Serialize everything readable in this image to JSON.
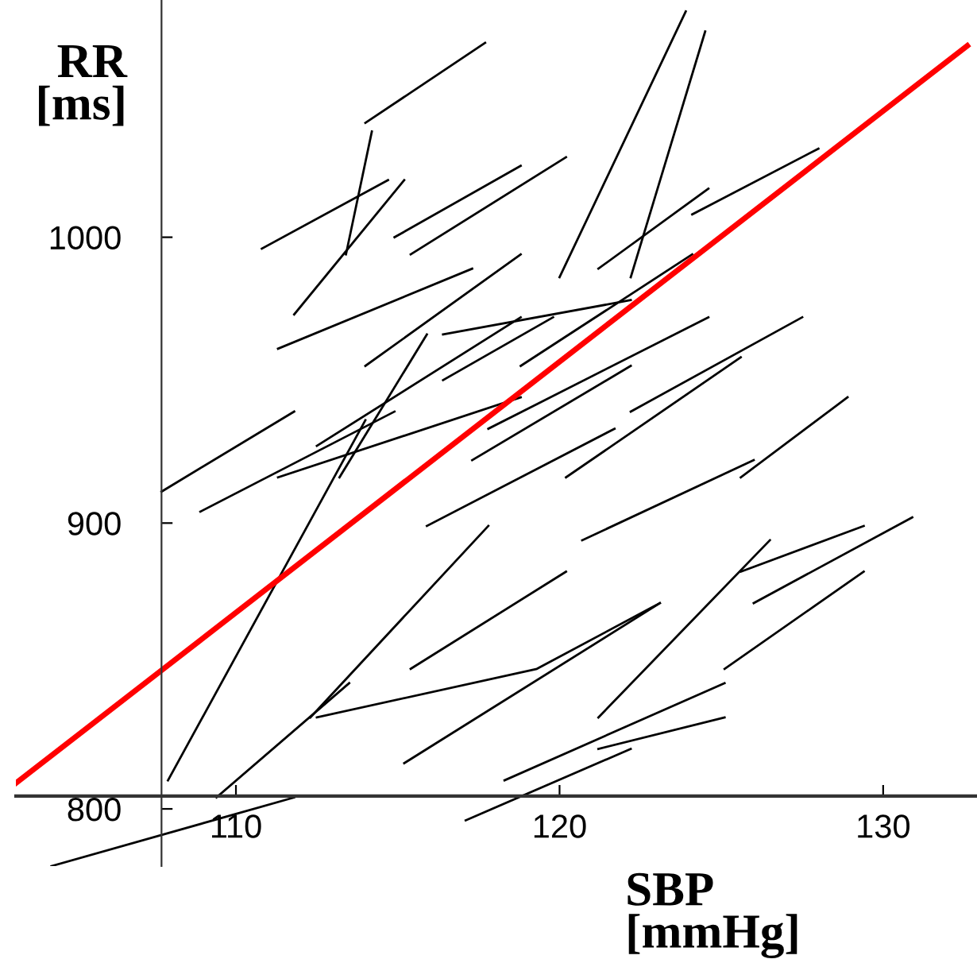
{
  "chart_data": {
    "type": "line",
    "xlabel": "SBP\n[mmHg]",
    "ylabel": "RR\n[ms]",
    "xlim": [
      103.2,
      132.9
    ],
    "ylim": [
      780,
      1083
    ],
    "xticks": [
      110,
      120,
      130
    ],
    "yticks": [
      800,
      900,
      1000
    ],
    "series": [
      {
        "color": "#000000",
        "x": [
          114.0,
          117.7
        ],
        "values": [
          1040,
          1068
        ]
      },
      {
        "color": "#000000",
        "x": [
          113.4,
          114.2
        ],
        "values": [
          994,
          1037
        ]
      },
      {
        "color": "#000000",
        "x": [
          110.8,
          114.7
        ],
        "values": [
          996,
          1020
        ]
      },
      {
        "color": "#000000",
        "x": [
          111.8,
          115.2
        ],
        "values": [
          973,
          1020
        ]
      },
      {
        "color": "#000000",
        "x": [
          120.0,
          123.9
        ],
        "values": [
          986,
          1079
        ]
      },
      {
        "color": "#000000",
        "x": [
          122.2,
          124.5
        ],
        "values": [
          986,
          1072
        ]
      },
      {
        "color": "#000000",
        "x": [
          124.1,
          128.0
        ],
        "values": [
          1008,
          1031
        ]
      },
      {
        "color": "#000000",
        "x": [
          111.3,
          117.3
        ],
        "values": [
          961,
          989
        ]
      },
      {
        "color": "#000000",
        "x": [
          112.5,
          118.8
        ],
        "values": [
          927,
          972
        ]
      },
      {
        "color": "#000000",
        "x": [
          111.3,
          118.8
        ],
        "values": [
          916,
          944
        ]
      },
      {
        "color": "#000000",
        "x": [
          107.7,
          111.8
        ],
        "values": [
          911,
          939
        ]
      },
      {
        "color": "#000000",
        "x": [
          108.9,
          114.9
        ],
        "values": [
          904,
          939
        ]
      },
      {
        "color": "#000000",
        "x": [
          113.2,
          115.9
        ],
        "values": [
          916,
          966
        ]
      },
      {
        "color": "#000000",
        "x": [
          107.9,
          114.0
        ],
        "values": [
          810,
          936
        ]
      },
      {
        "color": "#000000",
        "x": [
          109.4,
          113.5
        ],
        "values": [
          804,
          844
        ]
      },
      {
        "color": "#000000",
        "x": [
          112.3,
          117.8
        ],
        "values": [
          832,
          899
        ]
      },
      {
        "color": "#000000",
        "x": [
          115.4,
          120.2
        ],
        "values": [
          849,
          883
        ]
      },
      {
        "color": "#000000",
        "x": [
          112.5,
          119.3,
          123.1
        ],
        "values": [
          832,
          849,
          872
        ]
      },
      {
        "color": "#000000",
        "x": [
          115.2,
          123.1
        ],
        "values": [
          816,
          872
        ]
      },
      {
        "color": "#000000",
        "x": [
          118.3,
          125.1
        ],
        "values": [
          810,
          844
        ]
      },
      {
        "color": "#000000",
        "x": [
          121.2,
          125.1
        ],
        "values": [
          821,
          832
        ]
      },
      {
        "color": "#000000",
        "x": [
          125.1,
          129.4
        ],
        "values": [
          849,
          883
        ]
      },
      {
        "color": "#000000",
        "x": [
          121.2,
          126.5
        ],
        "values": [
          832,
          894
        ]
      },
      {
        "color": "#000000",
        "x": [
          125.6,
          129.4
        ],
        "values": [
          883,
          899
        ]
      },
      {
        "color": "#000000",
        "x": [
          126.0,
          130.9
        ],
        "values": [
          872,
          902
        ]
      },
      {
        "color": "#000000",
        "x": [
          125.6,
          128.9
        ],
        "values": [
          916,
          944
        ]
      },
      {
        "color": "#000000",
        "x": [
          122.2,
          127.5
        ],
        "values": [
          939,
          972
        ]
      },
      {
        "color": "#000000",
        "x": [
          120.7,
          126.0
        ],
        "values": [
          894,
          922
        ]
      },
      {
        "color": "#000000",
        "x": [
          120.2,
          125.6
        ],
        "values": [
          916,
          958
        ]
      },
      {
        "color": "#000000",
        "x": [
          115.9,
          121.7
        ],
        "values": [
          899,
          933
        ]
      },
      {
        "color": "#000000",
        "x": [
          117.8,
          124.6
        ],
        "values": [
          933,
          972
        ]
      },
      {
        "color": "#000000",
        "x": [
          118.8,
          124.1
        ],
        "values": [
          955,
          994
        ]
      },
      {
        "color": "#000000",
        "x": [
          121.2,
          124.6
        ],
        "values": [
          989,
          1017
        ]
      },
      {
        "color": "#000000",
        "x": [
          115.4,
          120.2
        ],
        "values": [
          994,
          1028
        ]
      },
      {
        "color": "#000000",
        "x": [
          114.9,
          118.8
        ],
        "values": [
          1000,
          1025
        ]
      },
      {
        "color": "#000000",
        "x": [
          114.0,
          118.8
        ],
        "values": [
          955,
          994
        ]
      },
      {
        "color": "#000000",
        "x": [
          116.4,
          119.8
        ],
        "values": [
          950,
          972
        ]
      },
      {
        "color": "#000000",
        "x": [
          117.3,
          122.2
        ],
        "values": [
          922,
          955
        ]
      },
      {
        "color": "#000000",
        "x": [
          116.4,
          122.2
        ],
        "values": [
          966,
          978
        ]
      },
      {
        "color": "#000000",
        "x": [
          104.3,
          111.8
        ],
        "values": [
          780,
          804
        ]
      },
      {
        "color": "#000000",
        "x": [
          117.1,
          122.2
        ],
        "values": [
          796,
          821
        ]
      },
      {
        "color": "#ff0000",
        "x": [
          103.2,
          132.6
        ],
        "values": [
          809,
          1067
        ]
      }
    ]
  }
}
